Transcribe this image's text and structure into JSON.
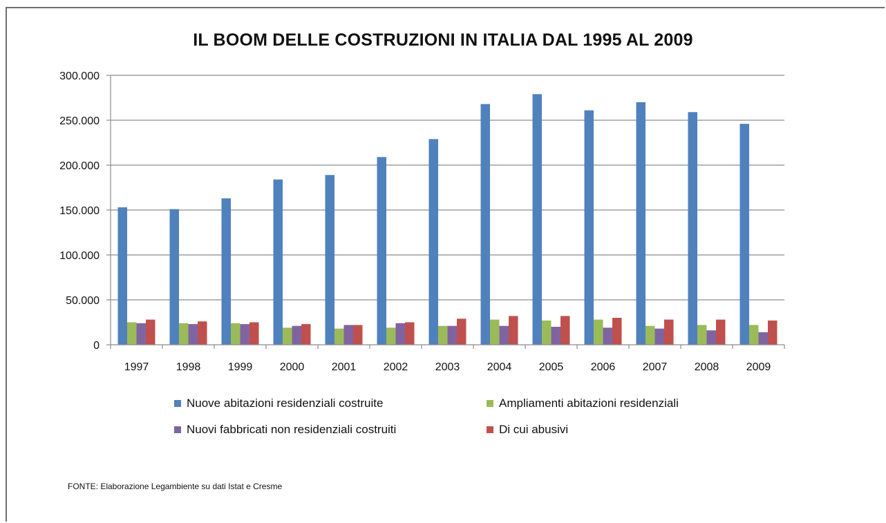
{
  "chart_data": {
    "type": "bar",
    "title": "IL BOOM DELLE COSTRUZIONI IN ITALIA DAL 1995 AL 2009",
    "xlabel": "",
    "ylabel": "",
    "ylim": [
      0,
      300000
    ],
    "y_ticks": [
      0,
      50000,
      100000,
      150000,
      200000,
      250000,
      300000
    ],
    "y_tick_labels": [
      "0",
      "50.000",
      "100.000",
      "150.000",
      "200.000",
      "250.000",
      "300.000"
    ],
    "grid": true,
    "legend_position": "bottom",
    "categories": [
      "1997",
      "1998",
      "1999",
      "2000",
      "2001",
      "2002",
      "2003",
      "2004",
      "2005",
      "2006",
      "2007",
      "2008",
      "2009"
    ],
    "series": [
      {
        "name": "Nuove abitazioni residenziali costruite",
        "color": "#4f81bd",
        "values": [
          153000,
          151000,
          163000,
          184000,
          189000,
          209000,
          229000,
          268000,
          279000,
          261000,
          270000,
          259000,
          246000
        ]
      },
      {
        "name": "Ampliamenti abitazioni residenziali",
        "color": "#9bbb59",
        "values": [
          25000,
          24000,
          24000,
          19000,
          18000,
          19000,
          21000,
          28000,
          27000,
          28000,
          21000,
          22000,
          22000
        ]
      },
      {
        "name": "Nuovi fabbricati non residenziali costruiti",
        "color": "#8064a2",
        "values": [
          24000,
          23000,
          23000,
          21000,
          22000,
          24000,
          21000,
          21000,
          20000,
          19000,
          18000,
          16000,
          14000
        ]
      },
      {
        "name": "Di cui abusivi",
        "color": "#c0504d",
        "values": [
          28000,
          26000,
          25000,
          23000,
          22000,
          25000,
          29000,
          32000,
          32000,
          30000,
          28000,
          28000,
          27000
        ]
      }
    ]
  },
  "legend_order": [
    0,
    2,
    1,
    3
  ],
  "source_note": "FONTE: Elaborazione Legambiente su dati Istat e Cresme"
}
